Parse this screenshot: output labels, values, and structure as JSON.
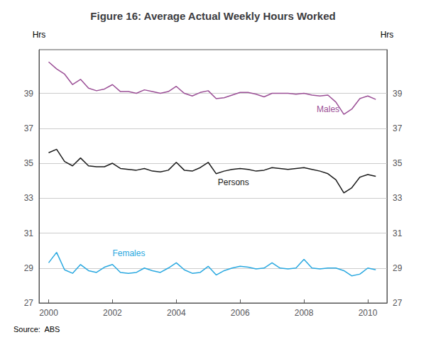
{
  "chart_data": {
    "type": "line",
    "title": "Figure 16: Average Actual Weekly Hours Worked",
    "ylabel": "Hrs",
    "y2label": "Hrs",
    "source": "Source:  ABS",
    "x": [
      2000.0,
      2000.25,
      2000.5,
      2000.75,
      2001.0,
      2001.25,
      2001.5,
      2001.75,
      2002.0,
      2002.25,
      2002.5,
      2002.75,
      2003.0,
      2003.25,
      2003.5,
      2003.75,
      2004.0,
      2004.25,
      2004.5,
      2004.75,
      2005.0,
      2005.25,
      2005.5,
      2005.75,
      2006.0,
      2006.25,
      2006.5,
      2006.75,
      2007.0,
      2007.25,
      2007.5,
      2007.75,
      2008.0,
      2008.25,
      2008.5,
      2008.75,
      2009.0,
      2009.25,
      2009.5,
      2009.75,
      2010.0,
      2010.25
    ],
    "series": [
      {
        "name": "Males",
        "color": "#9B4F96",
        "values": [
          40.8,
          40.4,
          40.1,
          39.5,
          39.8,
          39.3,
          39.15,
          39.25,
          39.5,
          39.1,
          39.1,
          39.0,
          39.2,
          39.1,
          39.0,
          39.1,
          39.4,
          39.0,
          38.85,
          39.05,
          39.15,
          38.7,
          38.75,
          38.9,
          39.05,
          39.05,
          38.95,
          38.8,
          39.0,
          39.0,
          39.0,
          38.95,
          39.0,
          38.9,
          38.85,
          38.9,
          38.5,
          37.8,
          38.1,
          38.7,
          38.85,
          38.65
        ]
      },
      {
        "name": "Persons",
        "color": "#1a1a1a",
        "values": [
          35.6,
          35.8,
          35.1,
          34.85,
          35.3,
          34.85,
          34.8,
          34.8,
          35.0,
          34.7,
          34.65,
          34.6,
          34.7,
          34.55,
          34.5,
          34.6,
          35.05,
          34.6,
          34.55,
          34.75,
          35.05,
          34.4,
          34.55,
          34.65,
          34.7,
          34.65,
          34.55,
          34.6,
          34.75,
          34.7,
          34.65,
          34.7,
          34.75,
          34.65,
          34.55,
          34.4,
          34.05,
          33.3,
          33.6,
          34.2,
          34.35,
          34.25
        ]
      },
      {
        "name": "Females",
        "color": "#29A8E0",
        "values": [
          29.3,
          29.9,
          28.9,
          28.7,
          29.2,
          28.85,
          28.75,
          29.05,
          29.2,
          28.75,
          28.7,
          28.75,
          29.0,
          28.85,
          28.75,
          29.0,
          29.3,
          28.9,
          28.7,
          28.75,
          29.1,
          28.6,
          28.85,
          29.0,
          29.1,
          29.05,
          28.95,
          29.0,
          29.3,
          29.0,
          28.95,
          29.0,
          29.5,
          29.0,
          28.95,
          29.0,
          29.0,
          28.85,
          28.55,
          28.65,
          29.0,
          28.9
        ]
      }
    ],
    "annotations": [
      {
        "text": "Males",
        "x": 2008.4,
        "y": 38.35,
        "color": "#9B4F96"
      },
      {
        "text": "Persons",
        "x": 2005.3,
        "y": 34.15,
        "color": "#1a1a1a"
      },
      {
        "text": "Females",
        "x": 2002.0,
        "y": 30.1,
        "color": "#29A8E0"
      }
    ],
    "xlim": [
      1999.7,
      2010.6
    ],
    "xticks": [
      2000,
      2002,
      2004,
      2006,
      2008,
      2010
    ],
    "ylim": [
      27,
      41.5
    ],
    "yticks": [
      27,
      29,
      31,
      33,
      35,
      37,
      39
    ],
    "y2lim": [
      27,
      41.5
    ],
    "y2ticks": [
      27,
      29,
      31,
      33,
      35,
      37,
      39
    ],
    "grid": true
  }
}
